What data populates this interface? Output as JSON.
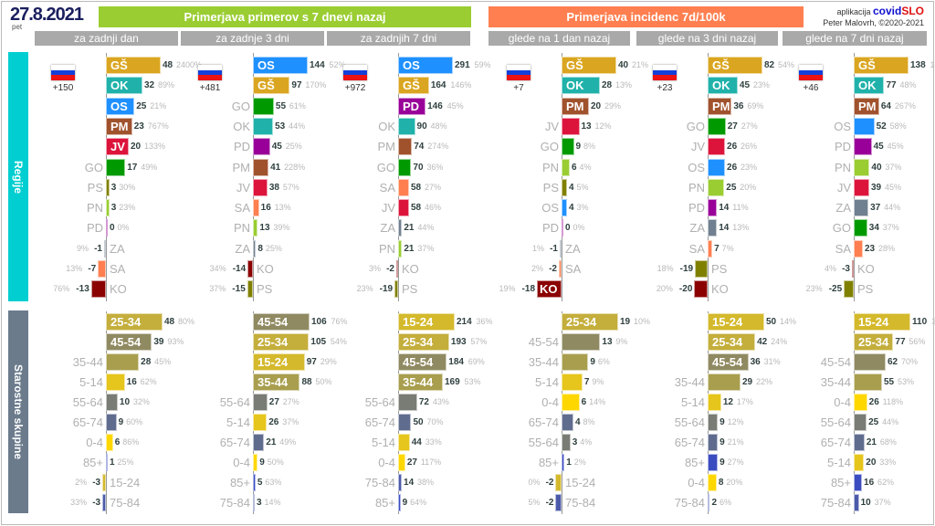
{
  "header": {
    "date": "27.8.2021",
    "weekday": "pet",
    "banner_cases": "Primerjava primerov s 7 dnevi nazaj",
    "banner_incidence": "Primerjava incidenc 7d/100k",
    "app_prefix": "aplikacija",
    "app_name_1": "covid",
    "app_name_2": "SLO",
    "author": "Peter Malovrh, ©2020-2021",
    "colors": {
      "cases": "#9acd32",
      "incidence": "#ff7f50",
      "subheader": "#a9a9a9"
    }
  },
  "side_labels": {
    "regions": "Regije",
    "ages": "Starostne skupine",
    "colors": {
      "regions": "#00ced1",
      "ages": "#6b7b8c"
    }
  },
  "colors": {
    "GŠ": "#daa520",
    "OK": "#20b2aa",
    "OS": "#1e90ff",
    "PM": "#a0522d",
    "JV": "#dc143c",
    "GO": "#009a00",
    "PS": "#808000",
    "PN": "#9acd32",
    "PD": "#990099",
    "ZA": "#708090",
    "SA": "#ff7f50",
    "KO": "#8b0000",
    "0-4": "#ffd700",
    "5-14": "#e6c51c",
    "15-24": "#d4b92c",
    "25-34": "#c4ae3c",
    "35-44": "#a89e4e",
    "45-54": "#908a62",
    "55-64": "#787c74",
    "65-74": "#606c8e",
    "75-84": "#4c5aaa",
    "85+": "#3a4cc0"
  },
  "chart_data": [
    {
      "type": "bar",
      "header": "za zadnji dan",
      "total": "+150",
      "regions": [
        [
          "GŠ",
          48,
          "2400%"
        ],
        [
          "OK",
          32,
          "89%"
        ],
        [
          "OS",
          25,
          "21%"
        ],
        [
          "PM",
          23,
          "767%"
        ],
        [
          "JV",
          20,
          "133%"
        ],
        [
          "GO",
          17,
          "49%"
        ],
        [
          "PS",
          3,
          "30%"
        ],
        [
          "PN",
          3,
          "23%"
        ],
        [
          "PD",
          0,
          "0%"
        ],
        [
          "ZA",
          -1,
          "9%"
        ],
        [
          "SA",
          -7,
          "13%"
        ],
        [
          "KO",
          -13,
          "76%"
        ]
      ],
      "ages": [
        [
          "25-34",
          48,
          "80%"
        ],
        [
          "45-54",
          39,
          "93%"
        ],
        [
          "35-44",
          28,
          "45%"
        ],
        [
          "5-14",
          16,
          "62%"
        ],
        [
          "55-64",
          10,
          "32%"
        ],
        [
          "65-74",
          9,
          "60%"
        ],
        [
          "0-4",
          6,
          "86%"
        ],
        [
          "85+",
          1,
          "25%"
        ],
        [
          "15-24",
          -3,
          "2%"
        ],
        [
          "75-84",
          -3,
          "33%"
        ]
      ]
    },
    {
      "type": "bar",
      "header": "za zadnje 3 dni",
      "total": "+481",
      "regions": [
        [
          "OS",
          144,
          "52%"
        ],
        [
          "GŠ",
          97,
          "170%"
        ],
        [
          "GO",
          55,
          "61%"
        ],
        [
          "OK",
          53,
          "44%"
        ],
        [
          "PD",
          45,
          "25%"
        ],
        [
          "PM",
          41,
          "228%"
        ],
        [
          "JV",
          38,
          "57%"
        ],
        [
          "SA",
          16,
          "13%"
        ],
        [
          "PN",
          13,
          "39%"
        ],
        [
          "ZA",
          8,
          "25%"
        ],
        [
          "KO",
          -14,
          "34%"
        ],
        [
          "PS",
          -15,
          "37%"
        ]
      ],
      "ages": [
        [
          "45-54",
          106,
          "76%"
        ],
        [
          "25-34",
          105,
          "54%"
        ],
        [
          "15-24",
          97,
          "29%"
        ],
        [
          "35-44",
          88,
          "50%"
        ],
        [
          "55-64",
          27,
          "27%"
        ],
        [
          "5-14",
          26,
          "37%"
        ],
        [
          "65-74",
          21,
          "49%"
        ],
        [
          "0-4",
          9,
          "50%"
        ],
        [
          "85+",
          5,
          "63%"
        ],
        [
          "75-84",
          3,
          "14%"
        ]
      ]
    },
    {
      "type": "bar",
      "header": "za zadnjih 7 dni",
      "total": "+972",
      "regions": [
        [
          "OS",
          291,
          "59%"
        ],
        [
          "GŠ",
          164,
          "146%"
        ],
        [
          "PD",
          146,
          "45%"
        ],
        [
          "OK",
          90,
          "48%"
        ],
        [
          "PM",
          74,
          "274%"
        ],
        [
          "GO",
          70,
          "36%"
        ],
        [
          "SA",
          58,
          "27%"
        ],
        [
          "JV",
          58,
          "46%"
        ],
        [
          "ZA",
          21,
          "44%"
        ],
        [
          "PN",
          21,
          "37%"
        ],
        [
          "KO",
          -2,
          "3%"
        ],
        [
          "PS",
          -19,
          "23%"
        ]
      ],
      "ages": [
        [
          "15-24",
          214,
          "36%"
        ],
        [
          "25-34",
          193,
          "57%"
        ],
        [
          "45-54",
          184,
          "69%"
        ],
        [
          "35-44",
          169,
          "53%"
        ],
        [
          "55-64",
          72,
          "43%"
        ],
        [
          "65-74",
          50,
          "70%"
        ],
        [
          "5-14",
          44,
          "33%"
        ],
        [
          "0-4",
          27,
          "117%"
        ],
        [
          "75-84",
          14,
          "38%"
        ],
        [
          "85+",
          9,
          "64%"
        ]
      ]
    },
    {
      "type": "bar",
      "header": "glede na 1 dan nazaj",
      "total": "+7",
      "regions": [
        [
          "GŠ",
          40,
          "21%"
        ],
        [
          "OK",
          28,
          "13%"
        ],
        [
          "PM",
          20,
          "29%"
        ],
        [
          "JV",
          13,
          "12%"
        ],
        [
          "GO",
          9,
          "8%"
        ],
        [
          "PN",
          6,
          "4%"
        ],
        [
          "PS",
          4,
          "5%"
        ],
        [
          "OS",
          4,
          "3%"
        ],
        [
          "PD",
          0,
          "0%"
        ],
        [
          "ZA",
          -1,
          "1%"
        ],
        [
          "SA",
          -2,
          "2%"
        ],
        [
          "KO",
          -18,
          "19%"
        ]
      ],
      "ages": [
        [
          "25-34",
          19,
          "10%"
        ],
        [
          "45-54",
          13,
          "9%"
        ],
        [
          "35-44",
          9,
          "6%"
        ],
        [
          "5-14",
          7,
          "9%"
        ],
        [
          "0-4",
          6,
          "14%"
        ],
        [
          "65-74",
          4,
          "8%"
        ],
        [
          "55-64",
          3,
          "4%"
        ],
        [
          "85+",
          1,
          "2%"
        ],
        [
          "15-24",
          -2,
          "0%"
        ],
        [
          "75-84",
          -2,
          "5%"
        ]
      ]
    },
    {
      "type": "bar",
      "header": "glede na 3 dni nazaj",
      "total": "+23",
      "regions": [
        [
          "GŠ",
          82,
          "54%"
        ],
        [
          "OK",
          45,
          "23%"
        ],
        [
          "PM",
          36,
          "69%"
        ],
        [
          "GO",
          27,
          "27%"
        ],
        [
          "JV",
          26,
          "26%"
        ],
        [
          "OS",
          26,
          "23%"
        ],
        [
          "PN",
          25,
          "20%"
        ],
        [
          "PD",
          14,
          "11%"
        ],
        [
          "ZA",
          14,
          "13%"
        ],
        [
          "SA",
          7,
          "7%"
        ],
        [
          "PS",
          -19,
          "18%"
        ],
        [
          "KO",
          -20,
          "20%"
        ]
      ],
      "ages": [
        [
          "15-24",
          50,
          "14%"
        ],
        [
          "25-34",
          42,
          "24%"
        ],
        [
          "45-54",
          36,
          "31%"
        ],
        [
          "35-44",
          29,
          "22%"
        ],
        [
          "5-14",
          12,
          "17%"
        ],
        [
          "55-64",
          9,
          "12%"
        ],
        [
          "65-74",
          9,
          "21%"
        ],
        [
          "85+",
          9,
          "27%"
        ],
        [
          "0-4",
          8,
          "20%"
        ],
        [
          "75-84",
          2,
          "6%"
        ]
      ]
    },
    {
      "type": "bar",
      "header": "glede na 7 dni nazaj",
      "total": "+46",
      "regions": [
        [
          "GŠ",
          138,
          "145%"
        ],
        [
          "OK",
          77,
          "48%"
        ],
        [
          "PM",
          64,
          "267%"
        ],
        [
          "OS",
          52,
          "58%"
        ],
        [
          "PD",
          45,
          "45%"
        ],
        [
          "PN",
          40,
          "37%"
        ],
        [
          "JV",
          39,
          "45%"
        ],
        [
          "ZA",
          37,
          "44%"
        ],
        [
          "GO",
          34,
          "37%"
        ],
        [
          "SA",
          23,
          "28%"
        ],
        [
          "KO",
          -3,
          "4%"
        ],
        [
          "PS",
          -25,
          "23%"
        ]
      ],
      "ages": [
        [
          "15-24",
          110,
          "36%"
        ],
        [
          "25-34",
          77,
          "56%"
        ],
        [
          "45-54",
          62,
          "70%"
        ],
        [
          "35-44",
          55,
          "53%"
        ],
        [
          "0-4",
          26,
          "118%"
        ],
        [
          "55-64",
          25,
          "44%"
        ],
        [
          "65-74",
          21,
          "68%"
        ],
        [
          "5-14",
          20,
          "33%"
        ],
        [
          "85+",
          16,
          "62%"
        ],
        [
          "75-84",
          10,
          "37%"
        ]
      ]
    }
  ]
}
